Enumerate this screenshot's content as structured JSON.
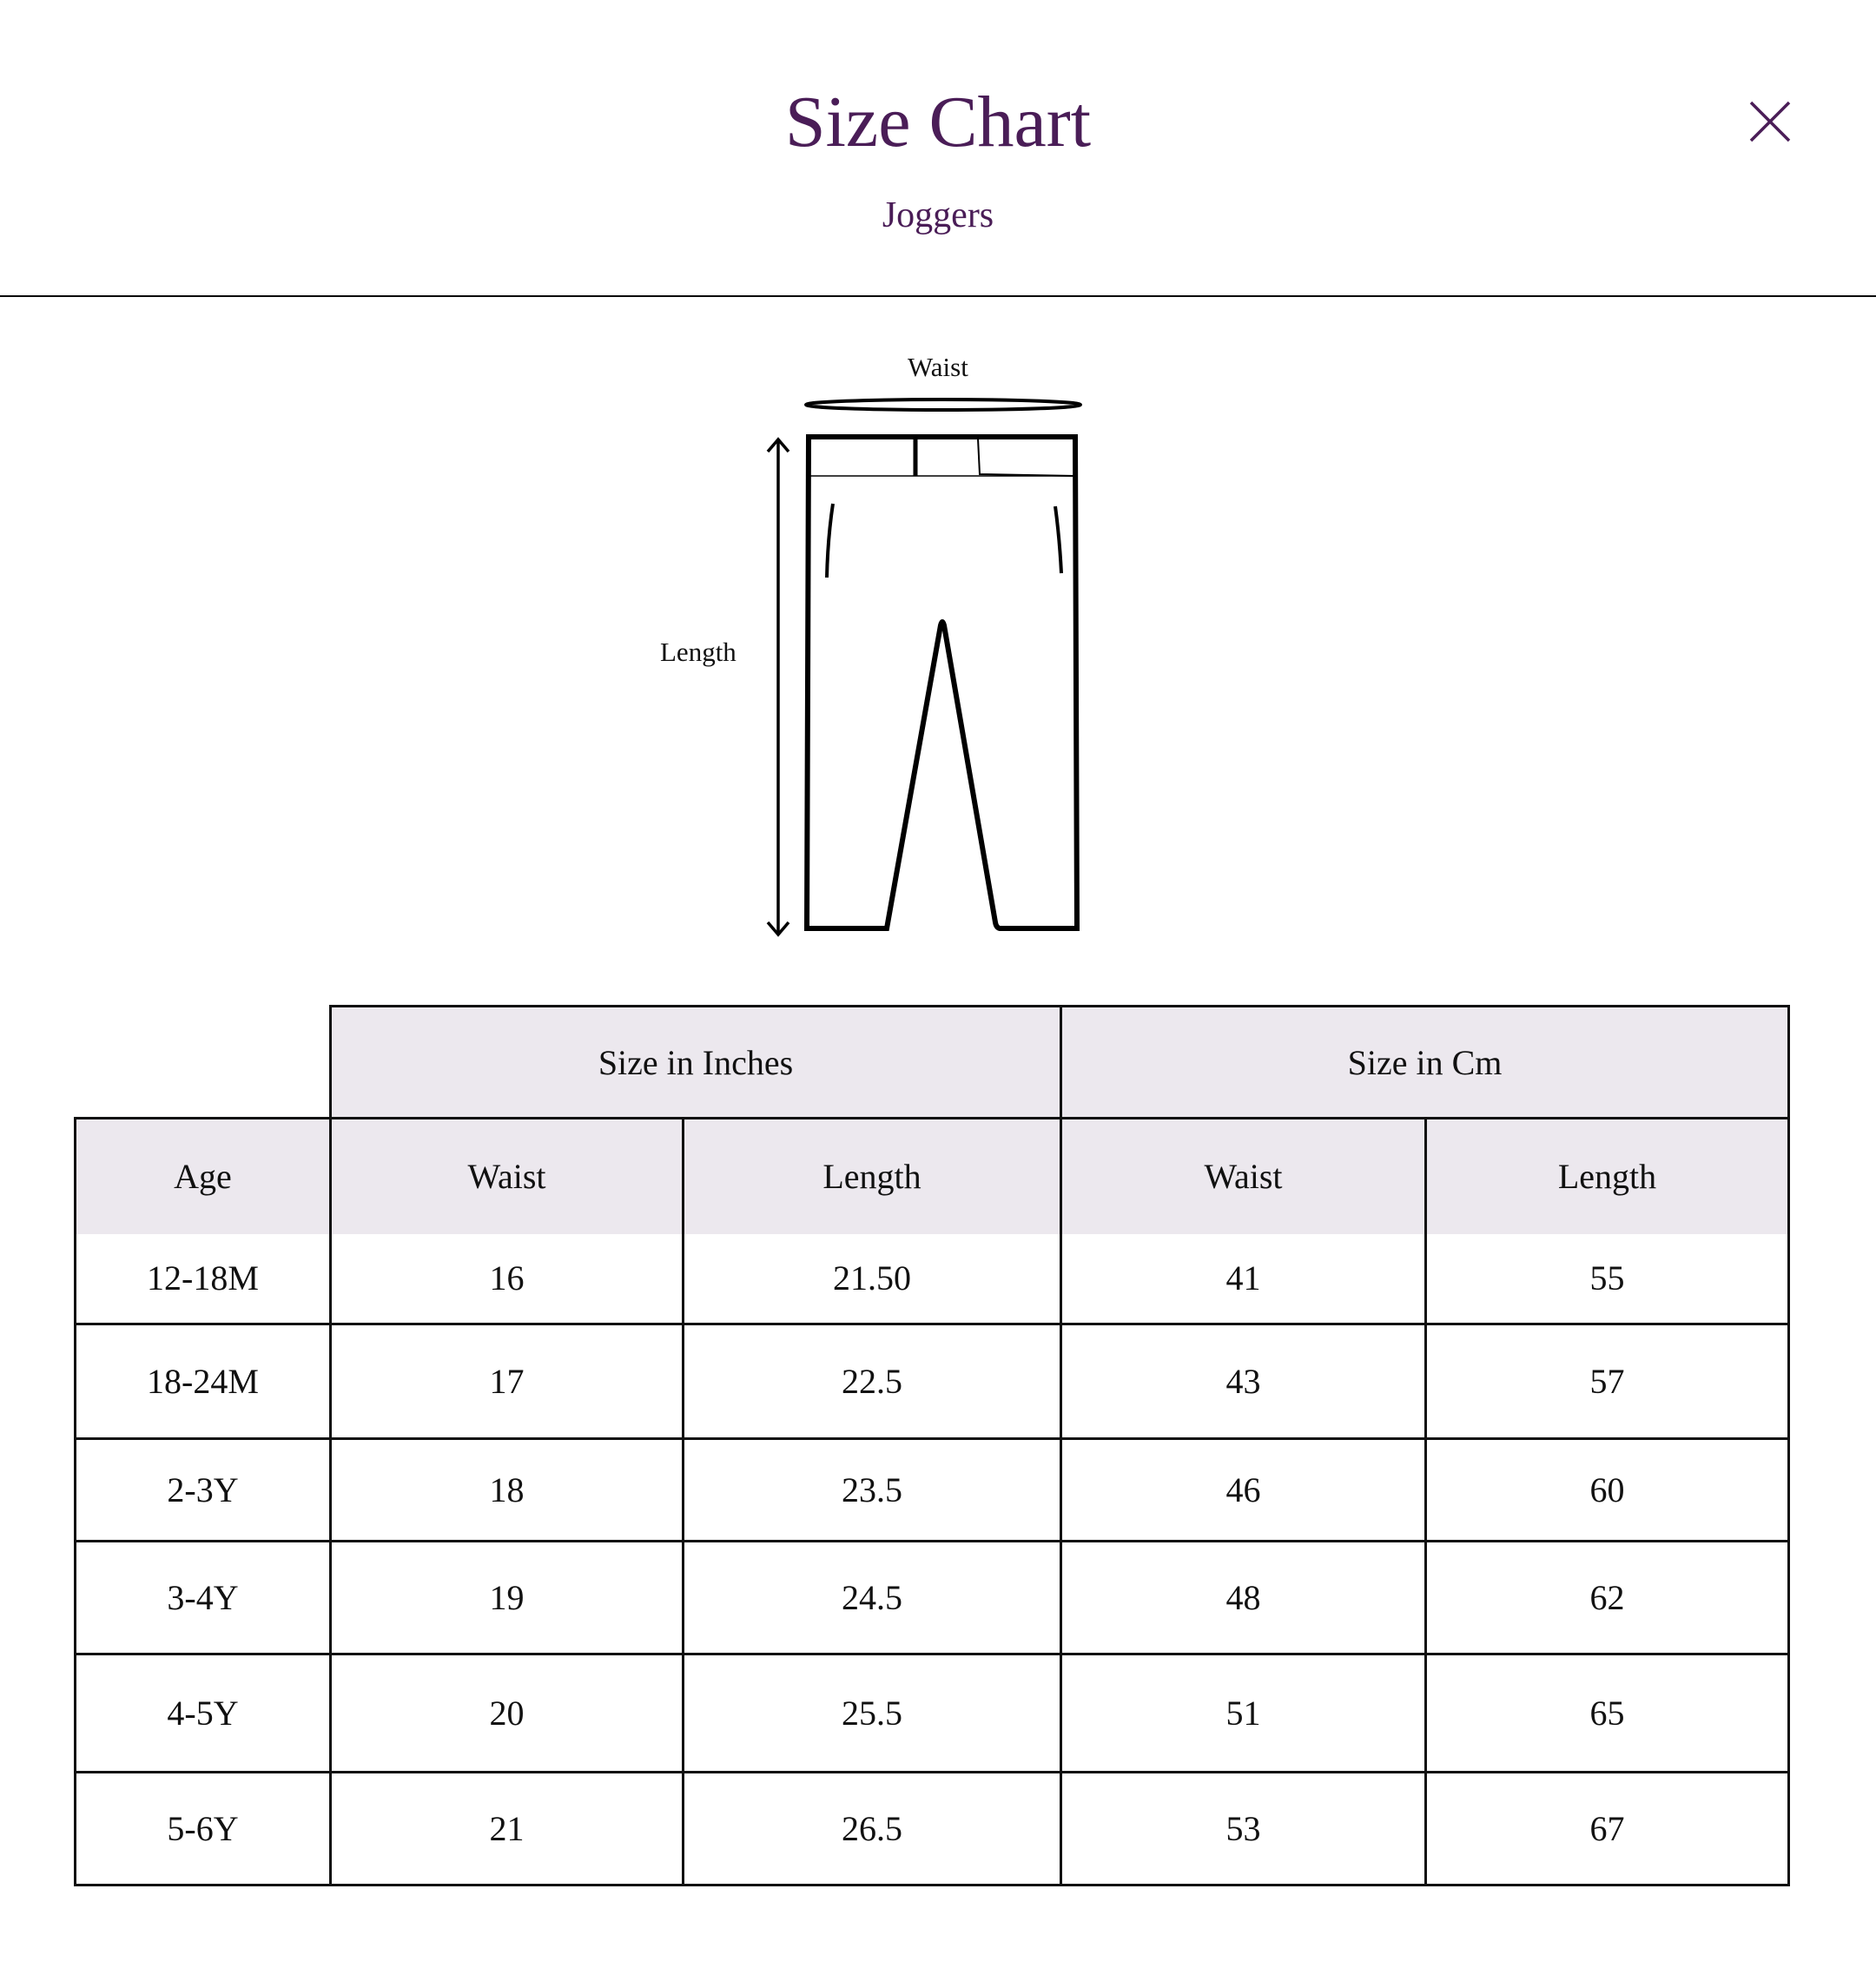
{
  "header": {
    "title": "Size Chart",
    "subtitle": "Joggers",
    "close_icon": "close-icon"
  },
  "colors": {
    "accent": "#4a1d57",
    "header_bg": "#ece8ee"
  },
  "diagram": {
    "waist_label": "Waist",
    "length_label": "Length"
  },
  "table": {
    "group_headers": [
      "Size in Inches",
      "Size in Cm"
    ],
    "columns": [
      "Age",
      "Waist",
      "Length",
      "Waist",
      "Length"
    ],
    "rows": [
      [
        "12-18M",
        "16",
        "21.50",
        "41",
        "55"
      ],
      [
        "18-24M",
        "17",
        "22.5",
        "43",
        "57"
      ],
      [
        "2-3Y",
        "18",
        "23.5",
        "46",
        "60"
      ],
      [
        "3-4Y",
        "19",
        "24.5",
        "48",
        "62"
      ],
      [
        "4-5Y",
        "20",
        "25.5",
        "51",
        "65"
      ],
      [
        "5-6Y",
        "21",
        "26.5",
        "53",
        "67"
      ]
    ]
  }
}
